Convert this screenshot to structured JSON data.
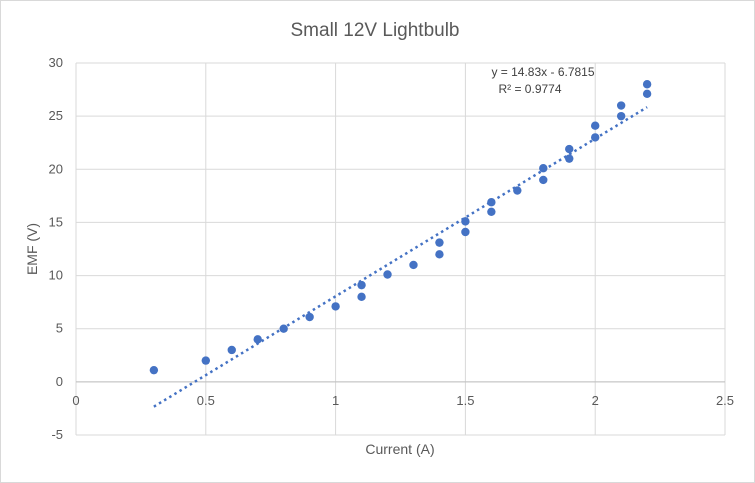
{
  "chart_data": {
    "type": "scatter",
    "title": "Small 12V Lightbulb",
    "xlabel": "Current (A)",
    "ylabel": "EMF (V)",
    "xlim": [
      0,
      2.5
    ],
    "ylim": [
      -5,
      30
    ],
    "xticks": [
      0,
      0.5,
      1,
      1.5,
      2,
      2.5
    ],
    "xtick_labels": [
      "0",
      "0.5",
      "1",
      "1.5",
      "2",
      "2.5"
    ],
    "yticks": [
      -5,
      0,
      5,
      10,
      15,
      20,
      25,
      30
    ],
    "ytick_labels": [
      "-5",
      "0",
      "5",
      "10",
      "15",
      "20",
      "25",
      "30"
    ],
    "grid": true,
    "legend": "none",
    "series": [
      {
        "color": "#4472c4",
        "points": [
          [
            0.3,
            1.1
          ],
          [
            0.5,
            2.0
          ],
          [
            0.6,
            3.0
          ],
          [
            0.7,
            4.0
          ],
          [
            0.8,
            5.0
          ],
          [
            0.9,
            6.1
          ],
          [
            1.0,
            7.1
          ],
          [
            1.1,
            8.0
          ],
          [
            1.1,
            9.1
          ],
          [
            1.2,
            10.1
          ],
          [
            1.3,
            11.0
          ],
          [
            1.4,
            12.0
          ],
          [
            1.4,
            13.1
          ],
          [
            1.5,
            14.1
          ],
          [
            1.5,
            15.1
          ],
          [
            1.6,
            16.0
          ],
          [
            1.6,
            16.9
          ],
          [
            1.7,
            18.0
          ],
          [
            1.8,
            19.0
          ],
          [
            1.8,
            20.1
          ],
          [
            1.9,
            21.0
          ],
          [
            1.9,
            21.9
          ],
          [
            2.0,
            23.0
          ],
          [
            2.0,
            24.1
          ],
          [
            2.1,
            25.0
          ],
          [
            2.1,
            26.0
          ],
          [
            2.2,
            27.1
          ],
          [
            2.2,
            28.0
          ]
        ]
      }
    ],
    "trendline": {
      "type": "linear",
      "slope": 14.83,
      "intercept": -6.7815,
      "x_range": [
        0.3,
        2.2
      ],
      "style": "dotted",
      "color": "#4472c4",
      "equation_label": "y = 14.83x - 6.7815",
      "r2_label": "R² = 0.9774"
    }
  }
}
